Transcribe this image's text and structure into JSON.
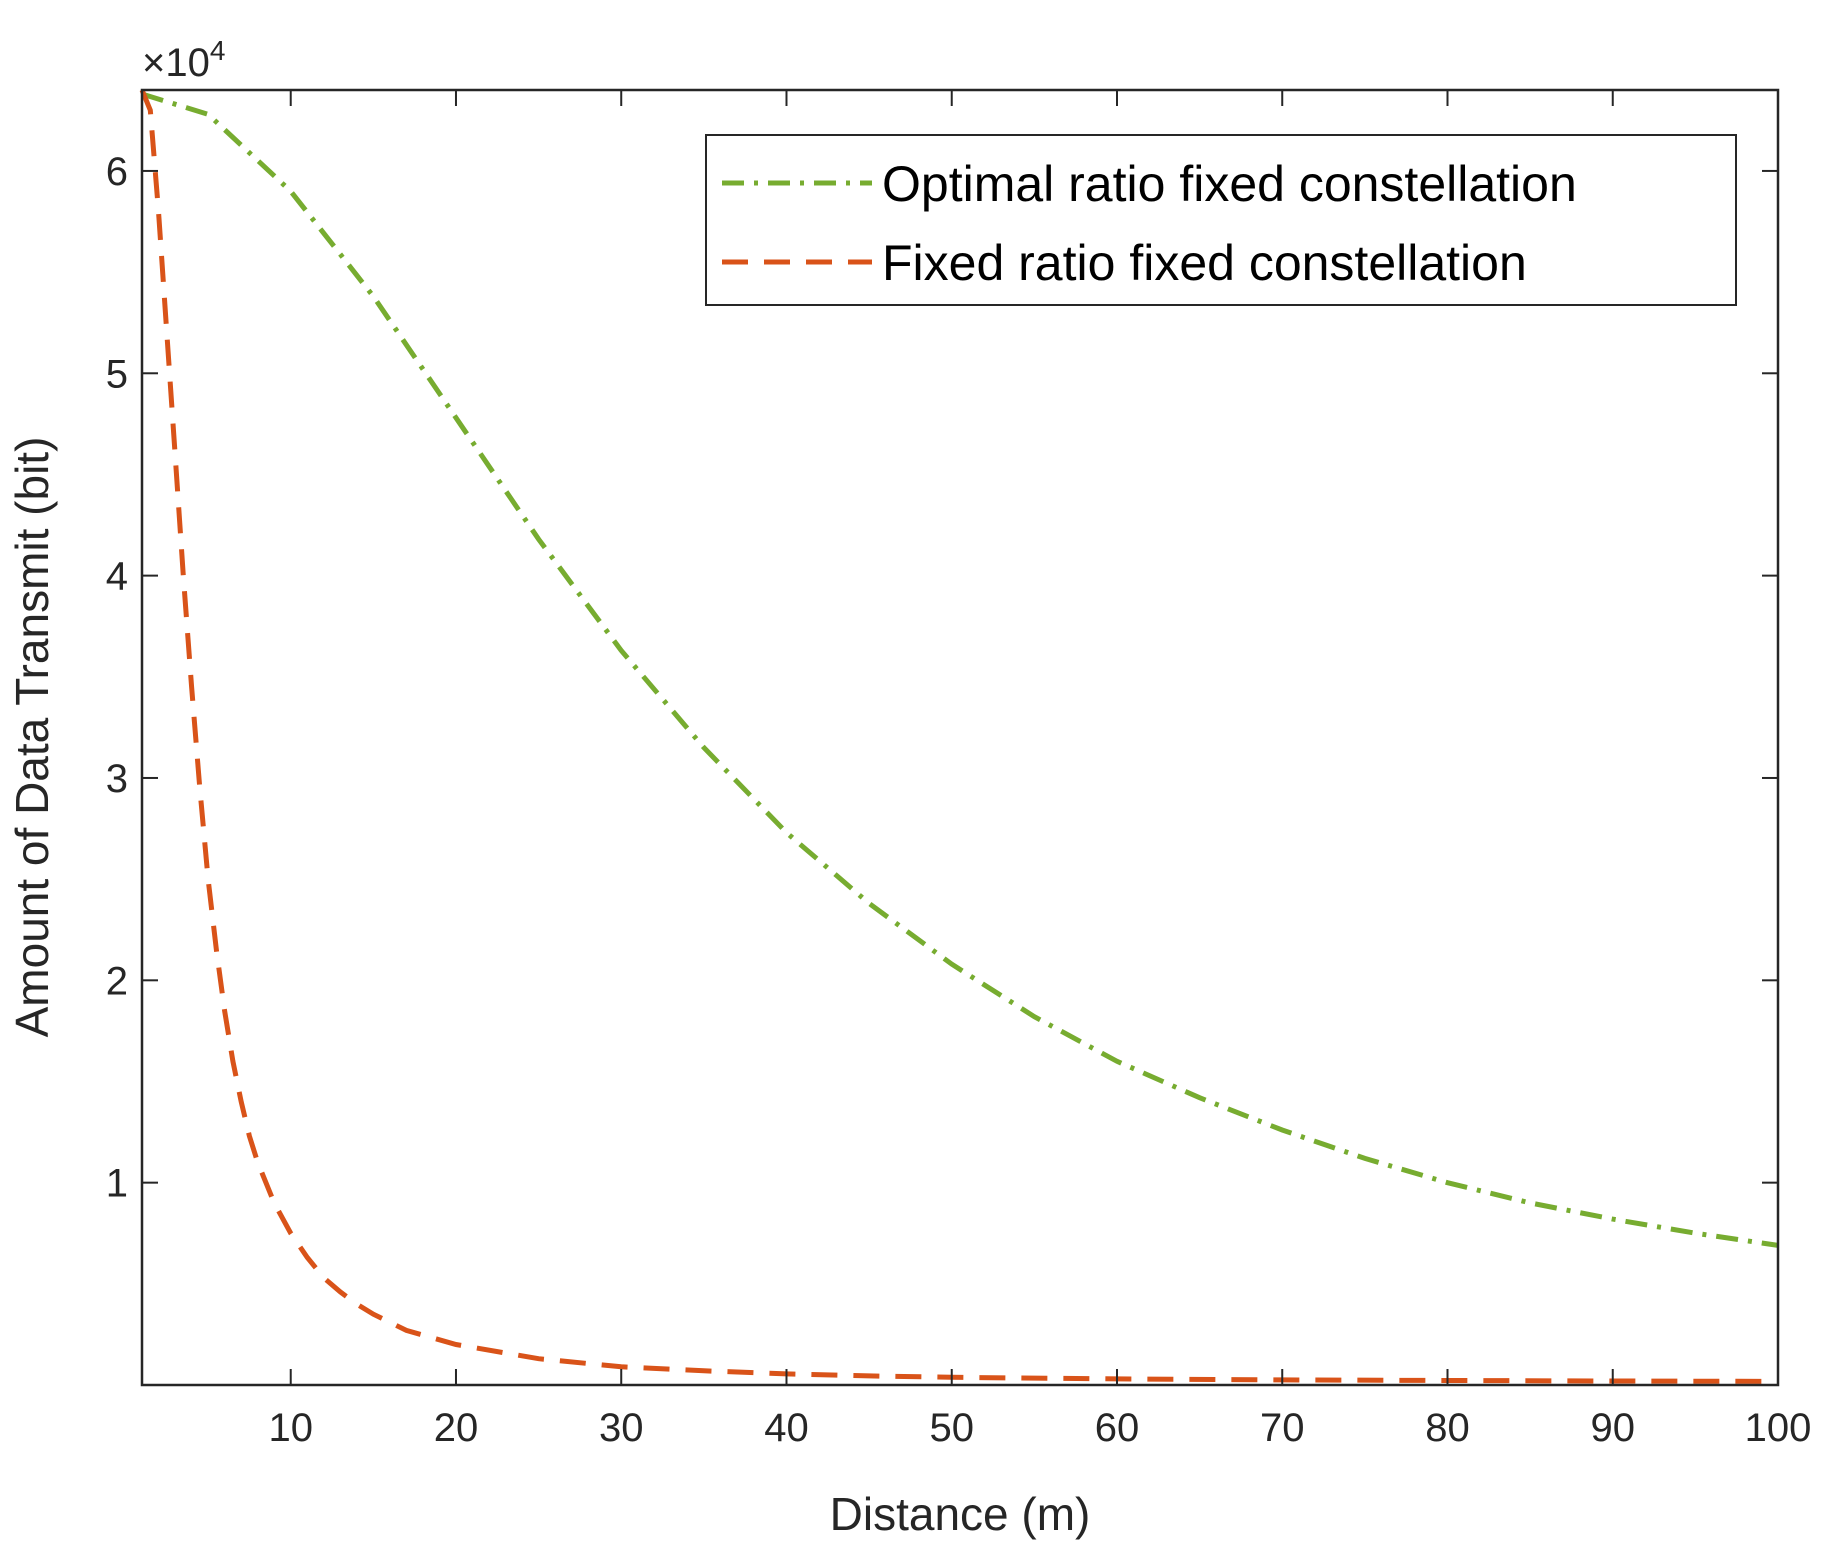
{
  "chart_data": {
    "type": "line",
    "xlabel": "Distance (m)",
    "ylabel": "Amount of Data Transmit (bit)",
    "xlim": [
      1,
      100
    ],
    "ylim": [
      0,
      64000
    ],
    "x_ticks": [
      10,
      20,
      30,
      40,
      50,
      60,
      70,
      80,
      90,
      100
    ],
    "x_tick_labels": [
      "10",
      "20",
      "30",
      "40",
      "50",
      "60",
      "70",
      "80",
      "90",
      "100"
    ],
    "y_ticks": [
      10000,
      20000,
      30000,
      40000,
      50000,
      60000
    ],
    "y_tick_labels": [
      "1",
      "2",
      "3",
      "4",
      "5",
      "6"
    ],
    "y_exponent": {
      "times": "×",
      "base": "10",
      "power": "4"
    },
    "legend_position": "top-right",
    "series": [
      {
        "name": "Optimal ratio fixed constellation",
        "color": "#77ac30",
        "style": "dash-dot",
        "x": [
          1,
          5,
          10,
          15,
          20,
          25,
          30,
          35,
          40,
          45,
          50,
          55,
          60,
          65,
          70,
          75,
          80,
          85,
          90,
          95,
          100
        ],
        "y": [
          63800,
          62800,
          59000,
          53800,
          47800,
          41800,
          36300,
          31500,
          27300,
          23800,
          20800,
          18200,
          16000,
          14200,
          12600,
          11200,
          10000,
          9000,
          8200,
          7500,
          6900
        ]
      },
      {
        "name": "Fixed ratio fixed constellation",
        "color": "#d95319",
        "style": "dashed",
        "x": [
          1,
          1.5,
          2,
          2.5,
          3,
          3.5,
          4,
          4.5,
          5,
          5.5,
          6,
          6.5,
          7,
          7.5,
          8,
          9,
          10,
          11,
          12,
          13,
          14,
          15,
          17,
          20,
          25,
          30,
          35,
          40,
          45,
          50,
          60,
          70,
          80,
          90,
          100
        ],
        "y": [
          64000,
          63000,
          58000,
          52000,
          46000,
          40000,
          34500,
          29500,
          25000,
          21500,
          18500,
          16000,
          14000,
          12300,
          11000,
          9000,
          7500,
          6300,
          5300,
          4600,
          4000,
          3500,
          2700,
          2000,
          1300,
          900,
          700,
          550,
          450,
          380,
          300,
          250,
          220,
          200,
          180
        ]
      }
    ]
  }
}
